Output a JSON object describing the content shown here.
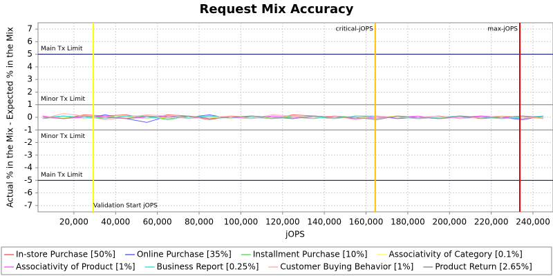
{
  "chart_data": {
    "type": "line",
    "title": "Request Mix Accuracy",
    "x_label": "jOPS",
    "y_label": "Actual % in the Mix - Expected % in the Mix",
    "xlim": [
      2800,
      249600
    ],
    "ylim": [
      -7.5,
      7.5
    ],
    "xticks": [
      {
        "value": 20000,
        "label": "20,000"
      },
      {
        "value": 40000,
        "label": "40,000"
      },
      {
        "value": 60000,
        "label": "60,000"
      },
      {
        "value": 80000,
        "label": "80,000"
      },
      {
        "value": 100000,
        "label": "100,000"
      },
      {
        "value": 120000,
        "label": "120,000"
      },
      {
        "value": 140000,
        "label": "140,000"
      },
      {
        "value": 160000,
        "label": "160,000"
      },
      {
        "value": 180000,
        "label": "180,000"
      },
      {
        "value": 200000,
        "label": "200,000"
      },
      {
        "value": 220000,
        "label": "220,000"
      },
      {
        "value": 240000,
        "label": "240,000"
      }
    ],
    "yticks": [
      -7,
      -6,
      -5,
      -4,
      -3,
      -2,
      -1,
      0,
      1,
      2,
      3,
      4,
      5,
      6,
      7
    ],
    "grid": true,
    "h_markers": [
      {
        "label": "Main Tx Limit",
        "value": 5,
        "color": "#000066"
      },
      {
        "label": "Minor Tx Limit",
        "value": 1,
        "color": "#808080"
      },
      {
        "label": "Minor Tx Limit",
        "value": -1,
        "color": "#808080"
      },
      {
        "label": "Main Tx Limit",
        "value": -5,
        "color": "#000066"
      }
    ],
    "v_markers": [
      {
        "label": "Validation Start jOPS",
        "value": 29300,
        "color": "#ffff00"
      },
      {
        "label": "critical-jOPS",
        "value": 164400,
        "color": "#ffc000"
      },
      {
        "label": "max-jOPS",
        "value": 233700,
        "color": "#e00000"
      }
    ],
    "x": [
      5000,
      15000,
      25000,
      35000,
      45000,
      55000,
      65000,
      75000,
      85000,
      95000,
      105000,
      115000,
      125000,
      135000,
      145000,
      155000,
      165000,
      175000,
      185000,
      195000,
      205000,
      215000,
      225000,
      235000,
      245000
    ],
    "series": [
      {
        "name": "In-store Purchase [50%]",
        "color": "#ff6060",
        "values": [
          0.1,
          -0.1,
          0.2,
          0.1,
          0.2,
          -0.1,
          0.2,
          0.1,
          -0.2,
          0.1,
          0.0,
          -0.1,
          0.2,
          0.1,
          -0.1,
          0.1,
          0.0,
          0.1,
          -0.1,
          0.0,
          0.1,
          -0.1,
          0.0,
          0.1,
          -0.1
        ]
      },
      {
        "name": "Online Purchase [35%]",
        "color": "#6060ff",
        "values": [
          -0.1,
          0.1,
          -0.1,
          0.2,
          -0.1,
          -0.4,
          0.1,
          0.0,
          0.2,
          -0.1,
          0.1,
          0.0,
          -0.1,
          0.1,
          0.0,
          -0.1,
          0.1,
          -0.1,
          0.0,
          0.1,
          -0.1,
          0.1,
          0.0,
          -0.2,
          0.1
        ]
      },
      {
        "name": "Installment Purchase [10%]",
        "color": "#60e060",
        "values": [
          0.0,
          0.1,
          -0.1,
          0.0,
          0.1,
          0.1,
          -0.2,
          0.1,
          -0.1,
          0.0,
          0.1,
          -0.1,
          0.0,
          -0.1,
          0.1,
          0.0,
          -0.1,
          0.1,
          0.0,
          -0.1,
          0.0,
          0.1,
          -0.1,
          0.0,
          0.0
        ]
      },
      {
        "name": "Associativity of Category [0.1%]",
        "color": "#ffff60",
        "values": [
          0.0,
          0.0,
          -0.1,
          0.1,
          0.0,
          -0.1,
          0.0,
          0.1,
          0.0,
          -0.1,
          0.0,
          0.0,
          0.1,
          0.0,
          -0.1,
          0.0,
          0.0,
          0.1,
          0.0,
          0.0,
          -0.1,
          0.0,
          0.1,
          0.0,
          0.0
        ]
      },
      {
        "name": "Associativity of Product [1%]",
        "color": "#ff60ff",
        "values": [
          0.1,
          -0.1,
          0.0,
          0.1,
          -0.1,
          0.0,
          0.1,
          -0.1,
          0.1,
          0.0,
          -0.1,
          0.1,
          0.0,
          0.0,
          0.1,
          -0.1,
          0.0,
          0.0,
          0.1,
          -0.1,
          0.0,
          0.1,
          0.0,
          -0.1,
          0.1
        ]
      },
      {
        "name": "Business Report [0.25%]",
        "color": "#40e0e0",
        "values": [
          0.0,
          0.1,
          0.0,
          -0.1,
          0.1,
          0.0,
          -0.1,
          0.0,
          0.1,
          0.0,
          0.0,
          -0.1,
          0.1,
          0.0,
          -0.1,
          0.1,
          0.1,
          0.0,
          -0.1,
          0.0,
          0.1,
          0.0,
          -0.1,
          0.0,
          0.1
        ]
      },
      {
        "name": "Customer Buying Behavior [1%]",
        "color": "#ffb0b0",
        "values": [
          -0.1,
          0.3,
          0.1,
          -0.2,
          0.0,
          0.2,
          0.1,
          -0.1,
          0.0,
          0.1,
          -0.1,
          0.2,
          0.1,
          0.0,
          0.1,
          -0.2,
          0.1,
          0.0,
          0.0,
          0.1,
          -0.1,
          0.0,
          0.1,
          0.0,
          -0.1
        ]
      },
      {
        "name": "Product Return [2.65%]",
        "color": "#909090",
        "values": [
          0.0,
          -0.1,
          0.1,
          0.0,
          -0.1,
          0.1,
          0.0,
          0.1,
          -0.1,
          0.0,
          0.1,
          0.0,
          -0.1,
          0.1,
          0.0,
          0.0,
          -0.2,
          0.1,
          0.0,
          -0.1,
          0.1,
          0.0,
          0.0,
          0.1,
          0.0
        ]
      }
    ]
  }
}
